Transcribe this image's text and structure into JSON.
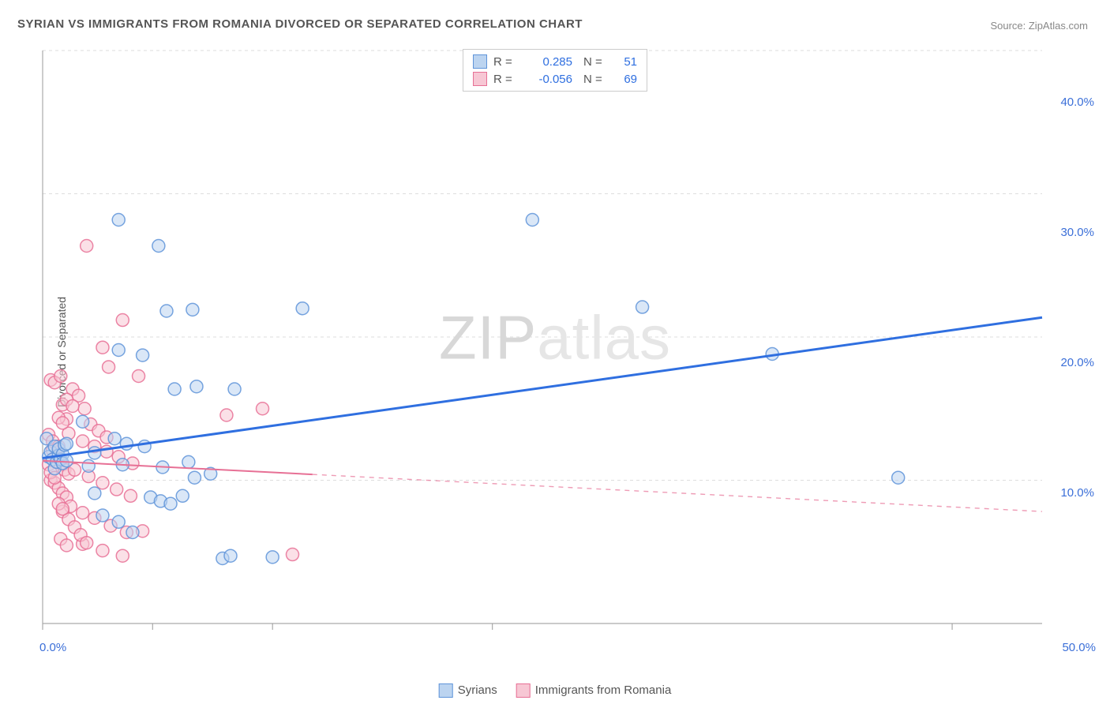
{
  "title": "SYRIAN VS IMMIGRANTS FROM ROMANIA DIVORCED OR SEPARATED CORRELATION CHART",
  "source": "Source: ZipAtlas.com",
  "ylabel": "Divorced or Separated",
  "watermark_a": "ZIP",
  "watermark_b": "atlas",
  "chart": {
    "type": "scatter",
    "background_color": "#ffffff",
    "grid_color": "#dddddd",
    "axis_color": "#aaaaaa",
    "tick_mark_color": "#999999",
    "xlim": [
      0,
      50
    ],
    "ylim": [
      0,
      44
    ],
    "xtick_positions": [
      0,
      5.5,
      11.5,
      22.5,
      45.5
    ],
    "xticklabels": [
      {
        "x": 0,
        "label": "0.0%"
      },
      {
        "x": 50,
        "label": "50.0%"
      }
    ],
    "ygrid_positions": [
      11,
      22,
      33,
      44
    ],
    "yticklabels": [
      {
        "y": 10,
        "label": "10.0%"
      },
      {
        "y": 20,
        "label": "20.0%"
      },
      {
        "y": 30,
        "label": "30.0%"
      },
      {
        "y": 40,
        "label": "40.0%"
      }
    ],
    "tick_label_color": "#3b6fd8",
    "tick_label_fontsize": 15,
    "marker_radius": 8,
    "marker_stroke_width": 1.5,
    "series": [
      {
        "name": "Syrians",
        "fill": "#bcd4f0",
        "stroke": "#5f94d9",
        "stroke_opacity": 0.85,
        "fill_opacity": 0.55,
        "R": "0.285",
        "N": "51",
        "trend": {
          "x1": 0,
          "y1": 12.7,
          "x2": 50,
          "y2": 23.5,
          "solid_until_x": 50,
          "color": "#2f6fe0",
          "width": 3
        },
        "points": [
          [
            0.2,
            14.2
          ],
          [
            0.3,
            12.8
          ],
          [
            0.4,
            13.2
          ],
          [
            0.5,
            12.6
          ],
          [
            0.6,
            11.9
          ],
          [
            0.6,
            13.6
          ],
          [
            0.7,
            12.4
          ],
          [
            0.8,
            12.9
          ],
          [
            0.8,
            13.4
          ],
          [
            0.9,
            12.6
          ],
          [
            1.0,
            13.0
          ],
          [
            1.0,
            12.3
          ],
          [
            1.1,
            13.7
          ],
          [
            1.2,
            12.5
          ],
          [
            1.2,
            13.8
          ],
          [
            3.8,
            31.0
          ],
          [
            5.8,
            29.0
          ],
          [
            6.2,
            24.0
          ],
          [
            7.5,
            24.1
          ],
          [
            3.8,
            21.0
          ],
          [
            5.0,
            20.6
          ],
          [
            6.6,
            18.0
          ],
          [
            7.7,
            18.2
          ],
          [
            9.6,
            18.0
          ],
          [
            13.0,
            24.2
          ],
          [
            3.6,
            14.2
          ],
          [
            4.2,
            13.8
          ],
          [
            5.1,
            13.6
          ],
          [
            5.4,
            9.7
          ],
          [
            5.9,
            9.4
          ],
          [
            6.4,
            9.2
          ],
          [
            7.0,
            9.8
          ],
          [
            7.6,
            11.2
          ],
          [
            8.4,
            11.5
          ],
          [
            9.0,
            5.0
          ],
          [
            9.4,
            5.2
          ],
          [
            11.5,
            5.1
          ],
          [
            3.0,
            8.3
          ],
          [
            3.8,
            7.8
          ],
          [
            4.5,
            7.0
          ],
          [
            2.6,
            10.0
          ],
          [
            24.5,
            31.0
          ],
          [
            30.0,
            24.3
          ],
          [
            36.5,
            20.7
          ],
          [
            42.8,
            11.2
          ],
          [
            2.0,
            15.5
          ],
          [
            2.3,
            12.1
          ],
          [
            2.6,
            13.1
          ],
          [
            4.0,
            12.2
          ],
          [
            6.0,
            12.0
          ],
          [
            7.3,
            12.4
          ]
        ]
      },
      {
        "name": "Immigants from Romania",
        "fill": "#f7c7d4",
        "stroke": "#e77095",
        "stroke_opacity": 0.85,
        "fill_opacity": 0.55,
        "R": "-0.056",
        "N": "69",
        "trend": {
          "x1": 0,
          "y1": 12.5,
          "x2": 50,
          "y2": 8.6,
          "solid_until_x": 13.5,
          "color": "#e77095",
          "width": 2
        },
        "points": [
          [
            0.4,
            18.7
          ],
          [
            0.6,
            18.5
          ],
          [
            0.9,
            19.0
          ],
          [
            1.0,
            16.8
          ],
          [
            1.2,
            15.7
          ],
          [
            1.3,
            14.6
          ],
          [
            0.5,
            13.3
          ],
          [
            0.7,
            12.9
          ],
          [
            0.9,
            12.5
          ],
          [
            1.0,
            12.2
          ],
          [
            1.1,
            11.8
          ],
          [
            1.3,
            11.5
          ],
          [
            0.4,
            11.0
          ],
          [
            0.6,
            10.8
          ],
          [
            0.8,
            10.4
          ],
          [
            1.0,
            10.0
          ],
          [
            1.2,
            9.7
          ],
          [
            2.2,
            29.0
          ],
          [
            4.0,
            23.3
          ],
          [
            3.0,
            21.2
          ],
          [
            3.3,
            19.7
          ],
          [
            4.8,
            19.0
          ],
          [
            2.0,
            14.0
          ],
          [
            2.6,
            13.6
          ],
          [
            3.2,
            13.2
          ],
          [
            3.8,
            12.8
          ],
          [
            4.5,
            12.3
          ],
          [
            1.6,
            11.8
          ],
          [
            2.3,
            11.3
          ],
          [
            3.0,
            10.8
          ],
          [
            3.7,
            10.3
          ],
          [
            4.4,
            9.8
          ],
          [
            1.4,
            9.0
          ],
          [
            2.0,
            8.5
          ],
          [
            2.6,
            8.1
          ],
          [
            3.4,
            7.5
          ],
          [
            4.2,
            7.0
          ],
          [
            5.0,
            7.1
          ],
          [
            2.0,
            6.1
          ],
          [
            3.0,
            5.6
          ],
          [
            4.0,
            5.2
          ],
          [
            9.2,
            16.0
          ],
          [
            11.0,
            16.5
          ],
          [
            12.5,
            5.3
          ],
          [
            0.3,
            14.5
          ],
          [
            0.5,
            14.0
          ],
          [
            0.8,
            13.6
          ],
          [
            1.5,
            18.0
          ],
          [
            1.8,
            17.5
          ],
          [
            2.1,
            16.5
          ],
          [
            2.4,
            15.3
          ],
          [
            2.8,
            14.8
          ],
          [
            3.2,
            14.3
          ],
          [
            1.0,
            8.6
          ],
          [
            1.3,
            8.0
          ],
          [
            1.6,
            7.4
          ],
          [
            1.9,
            6.8
          ],
          [
            2.2,
            6.2
          ],
          [
            0.9,
            6.5
          ],
          [
            1.2,
            6.0
          ],
          [
            0.8,
            15.8
          ],
          [
            1.0,
            15.4
          ],
          [
            1.2,
            17.2
          ],
          [
            1.5,
            16.7
          ],
          [
            0.3,
            12.2
          ],
          [
            0.4,
            11.6
          ],
          [
            0.6,
            11.2
          ],
          [
            0.8,
            9.2
          ],
          [
            1.0,
            8.8
          ]
        ]
      }
    ]
  },
  "legend_top": {
    "labels": {
      "R": "R =",
      "N": "N ="
    }
  },
  "legend_bottom": {
    "items": [
      "Syrians",
      "Immigrants from Romania"
    ]
  }
}
